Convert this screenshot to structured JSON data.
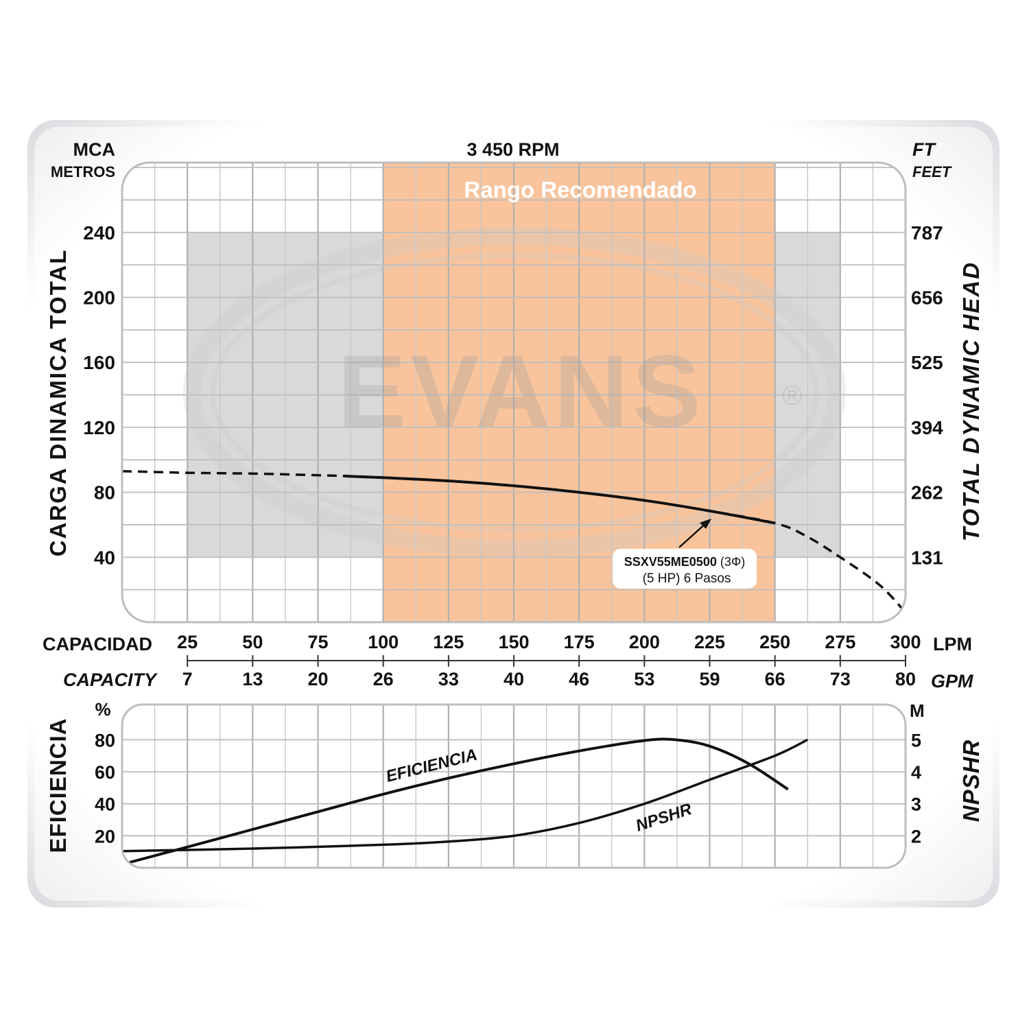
{
  "chart_data": [
    {
      "type": "line",
      "title": "3 450 RPM",
      "band_label": "Rango Recomendado",
      "watermark": "EVANS®",
      "left_axis": {
        "unit": "MCA",
        "unit_sub": "METROS",
        "label": "CARGA DINAMICA TOTAL",
        "ticks": [
          240,
          200,
          160,
          120,
          80,
          40
        ],
        "ylim": [
          0,
          283
        ]
      },
      "right_axis": {
        "unit": "FT",
        "unit_sub": "FEET",
        "label": "TOTAL DYNAMIC HEAD",
        "ticks": [
          "787",
          "656",
          "525",
          "394",
          "262",
          "131"
        ]
      },
      "x_axis": {
        "label_top": "CAPACIDAD",
        "unit_top": "LPM",
        "label_bottom": "CAPACITY",
        "unit_bottom": "GPM",
        "lpm_ticks": [
          25,
          50,
          75,
          100,
          125,
          150,
          175,
          200,
          225,
          250,
          275,
          300
        ],
        "gpm_ticks": [
          "7",
          "13",
          "20",
          "26",
          "33",
          "40",
          "46",
          "53",
          "59",
          "66",
          "73",
          "80"
        ],
        "xlim": [
          0,
          300
        ]
      },
      "recommended_range_lpm": [
        100,
        250
      ],
      "gray_region": {
        "x": [
          25,
          275
        ],
        "y": [
          40,
          240
        ]
      },
      "series": [
        {
          "name": "SSXV55ME0500",
          "x": [
            0,
            25,
            50,
            75,
            85,
            100,
            125,
            150,
            175,
            200,
            225,
            250,
            262,
            275,
            290,
            300
          ],
          "y": [
            93,
            92,
            91.5,
            90.5,
            90,
            89,
            87,
            84,
            80,
            75,
            68.5,
            61,
            53,
            40,
            23,
            6
          ],
          "solid_range": [
            85,
            250
          ]
        }
      ],
      "annotation": {
        "model": "SSXV55ME0500",
        "phase": "(3Φ)",
        "detail": "(5 HP) 6 Pasos"
      },
      "accent_color": "#f9c49c"
    },
    {
      "type": "line",
      "left_axis": {
        "unit": "%",
        "label": "EFICIENCIA",
        "ticks": [
          80,
          60,
          40,
          20
        ],
        "ylim": [
          0,
          102
        ]
      },
      "right_axis": {
        "unit": "M",
        "label": "NPSHR",
        "ticks": [
          "5",
          "4",
          "3",
          "2"
        ]
      },
      "xlim": [
        0,
        300
      ],
      "series": [
        {
          "name": "EFICIENCIA",
          "x": [
            2,
            25,
            50,
            75,
            100,
            125,
            150,
            175,
            200,
            212,
            225,
            240,
            255
          ],
          "y": [
            3,
            13,
            24,
            35,
            46,
            56,
            65,
            73,
            79.5,
            80,
            76,
            65,
            49
          ]
        },
        {
          "name": "NPSHR",
          "x": [
            0,
            50,
            100,
            125,
            150,
            175,
            200,
            225,
            250,
            262.5
          ],
          "y": [
            1.52,
            1.6,
            1.72,
            1.82,
            2.0,
            2.4,
            3.0,
            3.75,
            4.5,
            5.0
          ]
        }
      ]
    }
  ]
}
